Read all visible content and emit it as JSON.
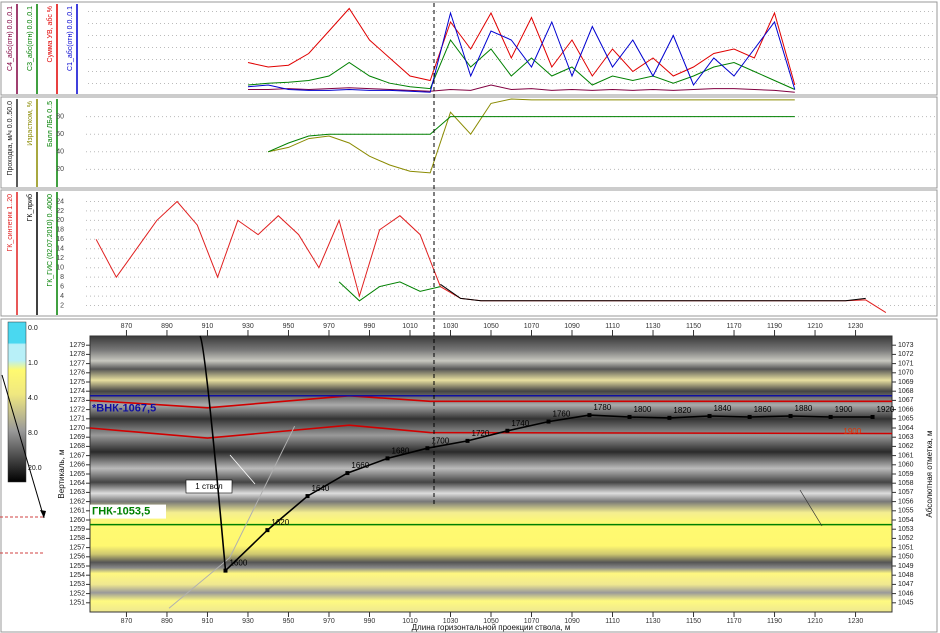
{
  "chart_data": [
    {
      "type": "line",
      "x": [
        930,
        940,
        950,
        960,
        970,
        980,
        990,
        1000,
        1010,
        1020,
        1030,
        1040,
        1050,
        1060,
        1070,
        1080,
        1090,
        1100,
        1110,
        1120,
        1130,
        1140,
        1150,
        1160,
        1170,
        1180,
        1190,
        1200
      ],
      "xlim": [
        852,
        1248
      ],
      "ylim": [
        0,
        0.1
      ],
      "series": [
        {
          "name": "С4_абс(отн) 0.0..0.1",
          "color": "#800040",
          "values": [
            0.005,
            0.005,
            0.006,
            0.005,
            0.006,
            0.007,
            0.006,
            0.005,
            0.004,
            0.003,
            0.005,
            0.004,
            0.01,
            0.005,
            0.006,
            0.004,
            0.005,
            0.004,
            0.005,
            0.004,
            0.005,
            0.004,
            0.005,
            0.006,
            0.006,
            0.005,
            0.004,
            0.002
          ]
        },
        {
          "name": "С3_абс(отн) 0.0..0.1",
          "color": "#008000",
          "values": [
            0.01,
            0.012,
            0.013,
            0.015,
            0.02,
            0.035,
            0.02,
            0.012,
            0.008,
            0.006,
            0.06,
            0.03,
            0.05,
            0.02,
            0.04,
            0.02,
            0.03,
            0.01,
            0.02,
            0.015,
            0.02,
            0.012,
            0.02,
            0.03,
            0.035,
            0.025,
            0.015,
            0.005
          ]
        },
        {
          "name": "Сумма УВ, абс %",
          "color": "#e00000",
          "values": [
            0.035,
            0.03,
            0.032,
            0.045,
            0.07,
            0.095,
            0.06,
            0.04,
            0.02,
            0.015,
            0.08,
            0.05,
            0.09,
            0.04,
            0.085,
            0.03,
            0.06,
            0.02,
            0.05,
            0.025,
            0.04,
            0.02,
            0.03,
            0.045,
            0.05,
            0.04,
            0.09,
            0.01
          ]
        },
        {
          "name": "С1_абс(отн) 0.0..0.1",
          "color": "#0000d0",
          "values": [
            0.008,
            0.01,
            0.005,
            0.004,
            0.004,
            0.005,
            0.004,
            0.004,
            0.003,
            0.002,
            0.09,
            0.02,
            0.07,
            0.06,
            0.03,
            0.08,
            0.02,
            0.075,
            0.03,
            0.06,
            0.02,
            0.065,
            0.01,
            0.04,
            0.02,
            0.05,
            0.08,
            0.005
          ]
        }
      ]
    },
    {
      "type": "line",
      "extra_label": "Проходка, м/ч 0.0..50.0",
      "x": [
        930,
        940,
        950,
        960,
        970,
        980,
        990,
        1000,
        1010,
        1020,
        1030,
        1040,
        1050,
        1060,
        1070,
        1080,
        1090,
        1100,
        1110,
        1120,
        1130,
        1140,
        1150,
        1160,
        1170,
        1180,
        1190,
        1200
      ],
      "xlim": [
        852,
        1248
      ],
      "ylim": [
        0,
        100
      ],
      "yticks": [
        20,
        40,
        60,
        80
      ],
      "grid": true,
      "series": [
        {
          "name": "Израстком, %",
          "color": "#8a8a00",
          "values": [
            null,
            40,
            45,
            55,
            58,
            50,
            35,
            25,
            18,
            16,
            85,
            60,
            95,
            100,
            99,
            99,
            99,
            99,
            99,
            99,
            99,
            99,
            99,
            99,
            99,
            99,
            99,
            99
          ]
        },
        {
          "name": "Балл ЛБА 0..5",
          "color": "#008000",
          "values": [
            null,
            40,
            50,
            58,
            60,
            60,
            60,
            60,
            60,
            60,
            80,
            80,
            80,
            80,
            80,
            80,
            80,
            80,
            80,
            80,
            80,
            80,
            80,
            80,
            80,
            80,
            80,
            80
          ]
        }
      ]
    },
    {
      "type": "line",
      "x": [
        855,
        865,
        875,
        885,
        895,
        905,
        915,
        925,
        935,
        945,
        955,
        965,
        975,
        985,
        995,
        1005,
        1015,
        1025,
        1035,
        1045,
        1055,
        1065,
        1075,
        1085,
        1095,
        1105,
        1115,
        1125,
        1135,
        1145,
        1155,
        1165,
        1175,
        1185,
        1195,
        1205,
        1215,
        1225,
        1235,
        1245
      ],
      "xlim": [
        852,
        1248
      ],
      "ylim": [
        0,
        26
      ],
      "yticks": [
        2,
        4,
        6,
        8,
        10,
        12,
        14,
        16,
        18,
        20,
        22,
        24
      ],
      "grid": true,
      "series": [
        {
          "name": "ГК_синтетик 1..20",
          "color": "#e02020",
          "values": [
            16,
            8,
            14,
            20,
            24,
            19,
            8,
            20,
            17,
            21,
            17,
            10,
            20,
            4,
            18,
            21,
            17,
            6,
            3.5,
            3,
            3,
            3,
            3,
            3,
            3,
            3,
            3,
            3,
            3,
            3,
            3,
            3,
            3,
            3,
            3,
            3,
            3,
            3,
            3.2,
            0.5
          ]
        },
        {
          "name": "ГК_приб",
          "color": "#000000",
          "values": [
            null,
            null,
            null,
            null,
            null,
            null,
            null,
            null,
            null,
            null,
            null,
            null,
            null,
            null,
            null,
            null,
            null,
            6.5,
            3.5,
            3,
            3,
            3,
            3,
            3,
            3,
            3,
            3,
            3,
            3,
            3,
            3,
            3,
            3,
            3,
            3,
            3,
            3,
            3,
            3.5,
            null
          ]
        },
        {
          "name": "ГК_ГИС (02.07.2010) 0..4000",
          "color": "#008000",
          "values": [
            null,
            null,
            null,
            null,
            null,
            null,
            null,
            null,
            null,
            null,
            null,
            null,
            7,
            3,
            6,
            7,
            5,
            6,
            null,
            null,
            null,
            null,
            null,
            null,
            null,
            null,
            null,
            null,
            null,
            null,
            null,
            null,
            null,
            null,
            null,
            null,
            null,
            null,
            null,
            null
          ]
        }
      ]
    },
    {
      "type": "line",
      "xlabel": "Длина горизонтальной проекции ствола, м",
      "ylabel": "Вертикаль, м",
      "y2label": "Абсолютная отметка, м",
      "xlim": [
        852,
        1248
      ],
      "ylim": [
        1250,
        1280
      ],
      "y2lim": [
        1044,
        1074
      ],
      "xticks": [
        870,
        890,
        910,
        930,
        950,
        970,
        990,
        1010,
        1030,
        1050,
        1070,
        1090,
        1110,
        1130,
        1150,
        1170,
        1190,
        1210,
        1230
      ],
      "yticks": [
        1251,
        1252,
        1253,
        1254,
        1255,
        1256,
        1257,
        1258,
        1259,
        1260,
        1261,
        1262,
        1263,
        1264,
        1265,
        1266,
        1267,
        1268,
        1269,
        1270,
        1271,
        1272,
        1273,
        1274,
        1275,
        1276,
        1277,
        1278,
        1279
      ],
      "y2ticks": [
        1045,
        1046,
        1047,
        1048,
        1049,
        1050,
        1051,
        1052,
        1053,
        1054,
        1055,
        1056,
        1057,
        1058,
        1059,
        1060,
        1061,
        1062,
        1063,
        1064,
        1065,
        1066,
        1067,
        1068,
        1069,
        1070,
        1071,
        1072,
        1073
      ],
      "colorbar": [
        {
          "value": 0,
          "label": "0.0"
        },
        {
          "value": 1,
          "label": "1.0"
        },
        {
          "value": 4,
          "label": "4.0"
        },
        {
          "value": 8,
          "label": "8.0"
        },
        {
          "value": 20,
          "label": "20.0"
        }
      ],
      "contacts": [
        {
          "label": "ГНК-1053,5",
          "value": 1053.5,
          "color": "#008000"
        },
        {
          "label": "*ВНК-1067,5",
          "value": 1067.5,
          "color": "#1010a0"
        }
      ],
      "surfaces": [
        {
          "color": "#d00000",
          "x": [
            852,
            910,
            980,
            1020,
            1248
          ],
          "values": [
            1270.0,
            1268.9,
            1270.3,
            1269.5,
            1269.4
          ]
        },
        {
          "color": "#d00000",
          "x": [
            852,
            910,
            980,
            1020,
            1248
          ],
          "values": [
            1273.0,
            1272.2,
            1273.5,
            1272.9,
            1272.9
          ]
        }
      ],
      "old_well": {
        "name": "1 ствол",
        "color": "#b0b0b0",
        "x": [
          891,
          921,
          953
        ],
        "values": [
          1250.4,
          1255.9,
          1270.2
        ]
      },
      "trajectory": {
        "color": "#000000",
        "x": [
          918.9,
          939.6,
          959.4,
          979.1,
          998.9,
          1018.6,
          1038.4,
          1058.1,
          1078.4,
          1098.6,
          1118.4,
          1138.1,
          1157.9,
          1177.7,
          1197.9,
          1217.7,
          1238.4
        ],
        "values": [
          1254.5,
          1258.9,
          1262.6,
          1265.1,
          1266.7,
          1267.8,
          1268.6,
          1269.7,
          1270.7,
          1271.4,
          1271.2,
          1271.1,
          1271.3,
          1271.2,
          1271.3,
          1271.2,
          1271.2
        ],
        "md": [
          1600,
          1620,
          1640,
          1660,
          1680,
          1700,
          1720,
          1740,
          1760,
          1780,
          1800,
          1820,
          1840,
          1860,
          1880,
          1900,
          1920
        ]
      },
      "annotation": {
        "text": "1900",
        "x": 1224,
        "y": 1269.6,
        "color": "#e03000"
      }
    }
  ]
}
